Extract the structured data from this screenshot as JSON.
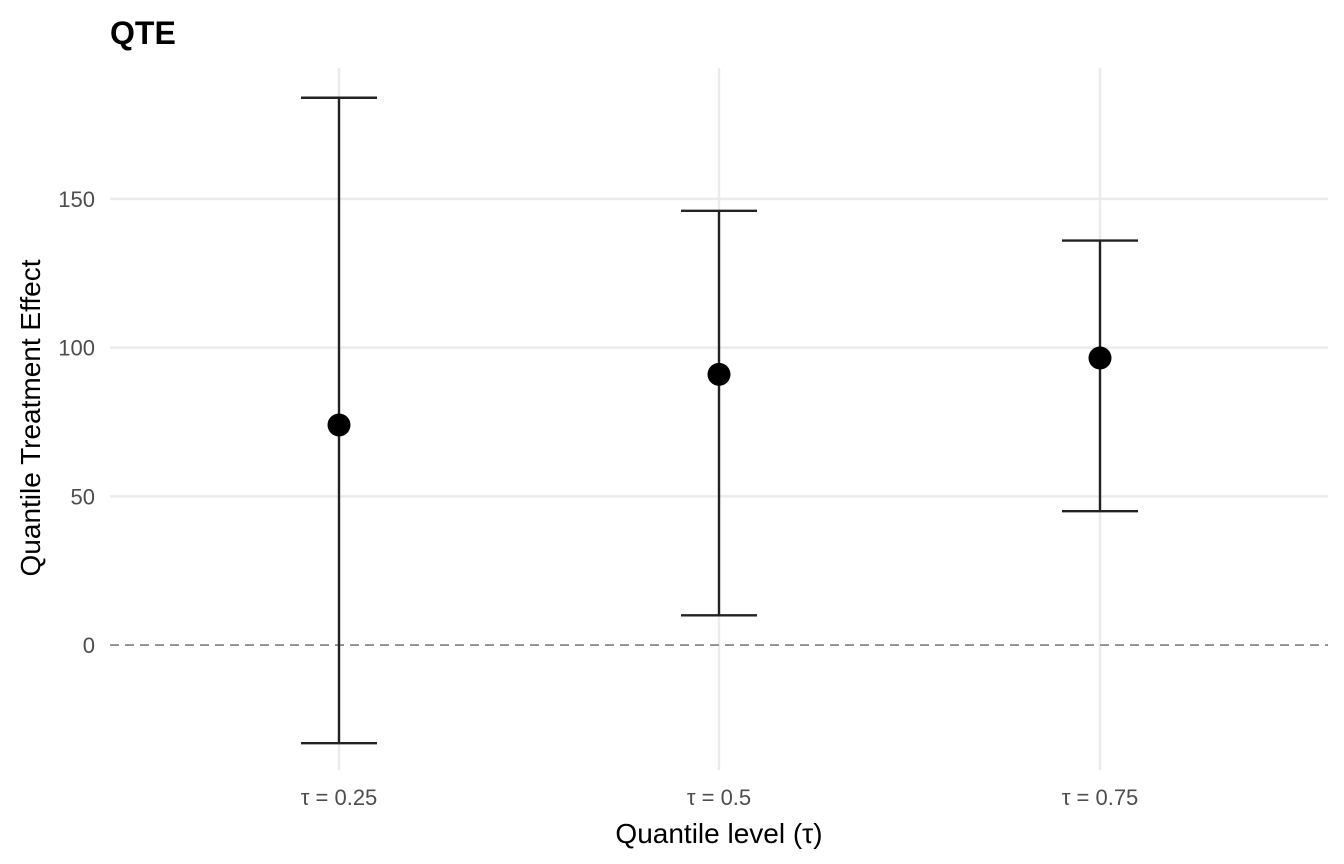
{
  "chart_data": {
    "type": "scatter",
    "title": "QTE",
    "xlabel": "Quantile level (τ)",
    "ylabel": "Quantile Treatment Effect",
    "categories": [
      "τ = 0.25",
      "τ = 0.5",
      "τ = 0.75"
    ],
    "estimates": [
      74,
      91,
      96.5
    ],
    "ci_lower": [
      -33,
      10,
      45
    ],
    "ci_upper": [
      184,
      146,
      136
    ],
    "reference_line": 0,
    "ylim": [
      -42,
      194
    ],
    "yticks": [
      0,
      50,
      100,
      150
    ],
    "ytick_labels": [
      "0",
      "50",
      "100",
      "150"
    ],
    "grid": true,
    "colors": {
      "point": "#000000",
      "errorbar": "#222222",
      "grid": "#ebebeb",
      "reference_line": "#7f7f7f"
    }
  }
}
